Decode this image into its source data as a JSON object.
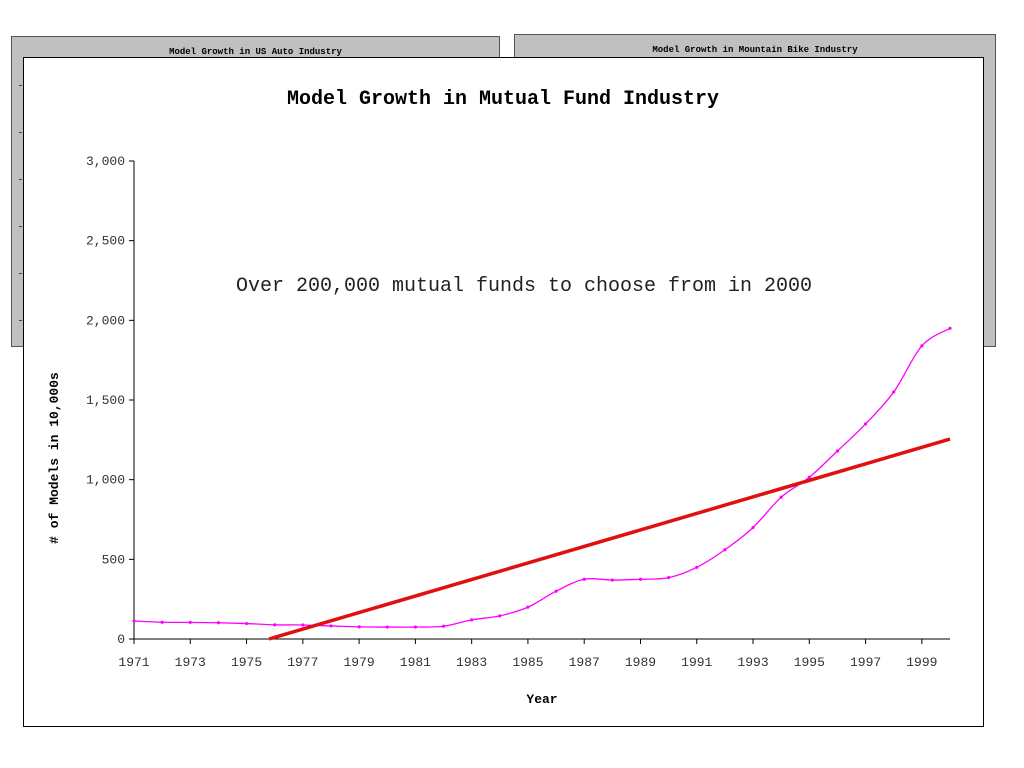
{
  "background_panels": [
    {
      "title": "Model Growth in US Auto Industry"
    },
    {
      "title": "Model Growth in Mountain Bike Industry"
    }
  ],
  "chart_data": {
    "type": "line",
    "title": "Model Growth in Mutual Fund Industry",
    "xlabel": "Year",
    "ylabel": "# of Models in 10,000s",
    "annotation": "Over 200,000 mutual funds to choose from in 2000",
    "xlim": [
      1971,
      2000
    ],
    "ylim": [
      0,
      3000
    ],
    "x_ticks": [
      1971,
      1973,
      1975,
      1977,
      1979,
      1981,
      1983,
      1985,
      1987,
      1989,
      1991,
      1993,
      1995,
      1997,
      1999
    ],
    "y_ticks": [
      0,
      500,
      1000,
      1500,
      2000,
      2500,
      3000
    ],
    "y_tick_labels": [
      "0",
      "500",
      "1,000",
      "1,500",
      "2,000",
      "2,500",
      "3,000"
    ],
    "grid": false,
    "legend": "none",
    "series": [
      {
        "color": "#ff00ff",
        "x": [
          1971,
          1972,
          1973,
          1974,
          1975,
          1976,
          1977,
          1978,
          1979,
          1980,
          1981,
          1982,
          1983,
          1984,
          1985,
          1986,
          1987,
          1988,
          1989,
          1990,
          1991,
          1992,
          1993,
          1994,
          1995,
          1996,
          1997,
          1998,
          1999,
          2000
        ],
        "y": [
          113,
          105,
          104,
          102,
          97,
          89,
          88,
          82,
          76,
          75,
          75,
          80,
          120,
          145,
          200,
          300,
          375,
          370,
          375,
          385,
          450,
          560,
          700,
          890,
          1015,
          1180,
          1350,
          1550,
          1840,
          1950
        ]
      },
      {
        "color": "#e01010",
        "type": "trendline",
        "x": [
          1975.8,
          2000
        ],
        "y": [
          0,
          1255
        ]
      }
    ]
  }
}
